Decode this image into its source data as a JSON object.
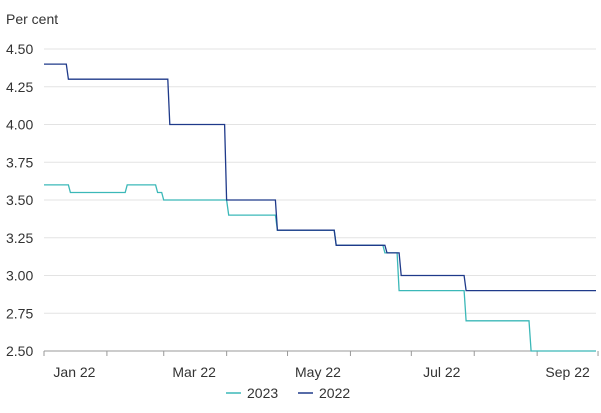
{
  "chart_data": {
    "type": "line",
    "y_unit": "Per cent",
    "ylim": [
      2.5,
      4.5
    ],
    "yticks": [
      "2.50",
      "2.75",
      "3.00",
      "3.25",
      "3.50",
      "3.75",
      "4.00",
      "4.25",
      "4.50"
    ],
    "xlim": [
      "2022-01-01",
      "2022-09-30"
    ],
    "x_tick_labels": [
      "Jan 22",
      "Mar 22",
      "May 22",
      "Jul 22",
      "Sep 22"
    ],
    "grid": true,
    "legend": "bottom-center",
    "series": [
      {
        "name": "2023",
        "color": "#3bb8b8",
        "step": true,
        "points": [
          [
            "2022-01-01",
            3.6
          ],
          [
            "2022-01-13",
            3.6
          ],
          [
            "2022-01-14",
            3.55
          ],
          [
            "2022-02-10",
            3.55
          ],
          [
            "2022-02-11",
            3.6
          ],
          [
            "2022-02-25",
            3.6
          ],
          [
            "2022-02-26",
            3.55
          ],
          [
            "2022-02-28",
            3.55
          ],
          [
            "2022-03-01",
            3.5
          ],
          [
            "2022-04-01",
            3.5
          ],
          [
            "2022-04-02",
            3.4
          ],
          [
            "2022-04-25",
            3.4
          ],
          [
            "2022-04-26",
            3.3
          ],
          [
            "2022-05-24",
            3.3
          ],
          [
            "2022-05-25",
            3.2
          ],
          [
            "2022-06-17",
            3.2
          ],
          [
            "2022-06-18",
            3.15
          ],
          [
            "2022-06-24",
            3.15
          ],
          [
            "2022-06-25",
            2.9
          ],
          [
            "2022-07-27",
            2.9
          ],
          [
            "2022-07-28",
            2.7
          ],
          [
            "2022-08-28",
            2.7
          ],
          [
            "2022-08-29",
            2.5
          ],
          [
            "2022-09-30",
            2.5
          ]
        ]
      },
      {
        "name": "2022",
        "color": "#1f3a8a",
        "step": true,
        "points": [
          [
            "2022-01-01",
            4.4
          ],
          [
            "2022-01-12",
            4.4
          ],
          [
            "2022-01-13",
            4.3
          ],
          [
            "2022-03-03",
            4.3
          ],
          [
            "2022-03-04",
            4.0
          ],
          [
            "2022-03-31",
            4.0
          ],
          [
            "2022-04-01",
            3.5
          ],
          [
            "2022-04-25",
            3.5
          ],
          [
            "2022-04-26",
            3.3
          ],
          [
            "2022-05-24",
            3.3
          ],
          [
            "2022-05-25",
            3.2
          ],
          [
            "2022-06-18",
            3.2
          ],
          [
            "2022-06-19",
            3.15
          ],
          [
            "2022-06-25",
            3.15
          ],
          [
            "2022-06-26",
            3.0
          ],
          [
            "2022-07-27",
            3.0
          ],
          [
            "2022-07-28",
            2.9
          ],
          [
            "2022-09-30",
            2.9
          ]
        ]
      }
    ]
  }
}
